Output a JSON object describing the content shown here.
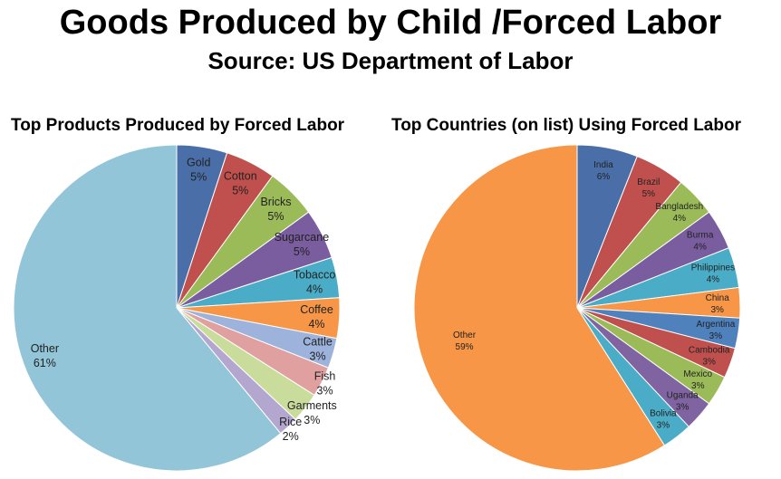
{
  "header": {
    "title": "Goods Produced by Child /Forced Labor",
    "subtitle": "Source: US Department of Labor"
  },
  "chart_data": [
    {
      "type": "pie",
      "title": "Top Products Produced by Forced Labor",
      "slices": [
        {
          "label": "Gold",
          "value": 5,
          "value_label": "5%",
          "color": "#4a6fa8"
        },
        {
          "label": "Cotton",
          "value": 5,
          "value_label": "5%",
          "color": "#c0504d"
        },
        {
          "label": "Bricks",
          "value": 5,
          "value_label": "5%",
          "color": "#9bbb59"
        },
        {
          "label": "Sugarcane",
          "value": 5,
          "value_label": "5%",
          "color": "#7a5d9f"
        },
        {
          "label": "Tobacco",
          "value": 4,
          "value_label": "4%",
          "color": "#4aacc6"
        },
        {
          "label": "Coffee",
          "value": 4,
          "value_label": "4%",
          "color": "#f79646"
        },
        {
          "label": "Cattle",
          "value": 3,
          "value_label": "3%",
          "color": "#9db3dc"
        },
        {
          "label": "Fish",
          "value": 3,
          "value_label": "3%",
          "color": "#e0a0a0"
        },
        {
          "label": "Garments",
          "value": 3,
          "value_label": "3%",
          "color": "#c9dc9c"
        },
        {
          "label": "Rice",
          "value": 2,
          "value_label": "2%",
          "color": "#b4a7cf"
        },
        {
          "label": "Other",
          "value": 61,
          "value_label": "61%",
          "color": "#92c5d8"
        }
      ]
    },
    {
      "type": "pie",
      "title": "Top Countries (on list) Using Forced Labor",
      "slices": [
        {
          "label": "India",
          "value": 6,
          "value_label": "6%",
          "color": "#4a6fa8"
        },
        {
          "label": "Brazil",
          "value": 5,
          "value_label": "5%",
          "color": "#c0504d"
        },
        {
          "label": "Bangladesh",
          "value": 4,
          "value_label": "4%",
          "color": "#9bbb59"
        },
        {
          "label": "Burma",
          "value": 4,
          "value_label": "4%",
          "color": "#7a5d9f"
        },
        {
          "label": "Philippines",
          "value": 4,
          "value_label": "4%",
          "color": "#4aacc6"
        },
        {
          "label": "China",
          "value": 3,
          "value_label": "3%",
          "color": "#f79646"
        },
        {
          "label": "Argentina",
          "value": 3,
          "value_label": "3%",
          "color": "#4f81bd"
        },
        {
          "label": "Cambodia",
          "value": 3,
          "value_label": "3%",
          "color": "#c0504d"
        },
        {
          "label": "Mexico",
          "value": 3,
          "value_label": "3%",
          "color": "#9bbb59"
        },
        {
          "label": "Uganda",
          "value": 3,
          "value_label": "3%",
          "color": "#8064a2"
        },
        {
          "label": "Bolivia",
          "value": 3,
          "value_label": "3%",
          "color": "#4aacc6"
        },
        {
          "label": "Other",
          "value": 59,
          "value_label": "59%",
          "color": "#f79646"
        }
      ]
    }
  ]
}
